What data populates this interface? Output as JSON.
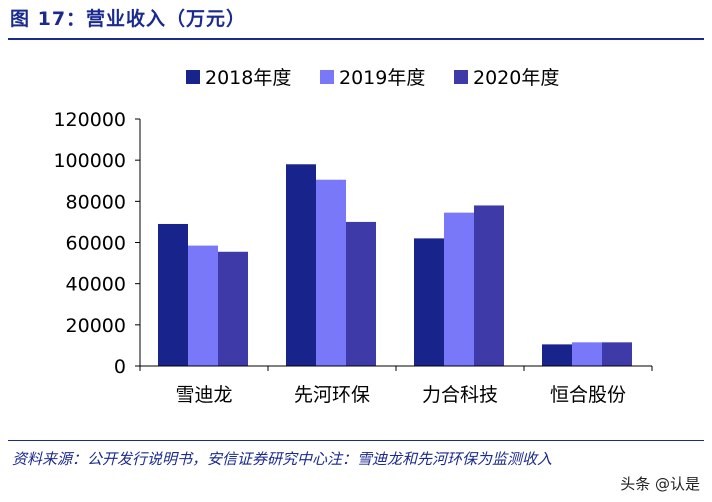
{
  "figure_title": "图 17：营业收入（万元）",
  "source_note": "资料来源：公开发行说明书，安信证券研究中心注：雪迪龙和先河环保为监测收入",
  "watermark": "头条 @认是",
  "colors": {
    "series_2018": "#18238c",
    "series_2019": "#7878f8",
    "series_2020": "#3e3aa8",
    "header": "#1b2a8e"
  },
  "chart_data": {
    "type": "bar",
    "title": "",
    "xlabel": "",
    "ylabel": "",
    "categories": [
      "雪迪龙",
      "先河环保",
      "力合科技",
      "恒合股份"
    ],
    "series": [
      {
        "name": "2018年度",
        "values": [
          69000,
          98000,
          62000,
          10500
        ]
      },
      {
        "name": "2019年度",
        "values": [
          58500,
          90500,
          74500,
          11500
        ]
      },
      {
        "name": "2020年度",
        "values": [
          55500,
          70000,
          78000,
          11500
        ]
      }
    ],
    "ylim": [
      0,
      120000
    ],
    "yticks": [
      "0",
      "20000",
      "40000",
      "60000",
      "80000",
      "100000",
      "120000"
    ],
    "grid": false,
    "legend_position": "top"
  }
}
